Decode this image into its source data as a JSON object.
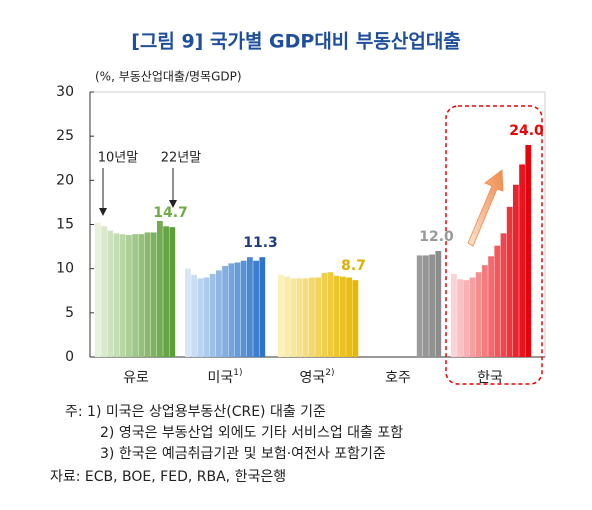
{
  "chart_data": {
    "type": "grouped_bar",
    "title": "[그림 9] 국가별 GDP대비 부동산업대출",
    "ylabel": "(%, 부동산업대출/명목GDP)",
    "ylim": [
      0,
      30
    ],
    "yticks": [
      0,
      5,
      10,
      15,
      20,
      25,
      30
    ],
    "groups": [
      {
        "name": "유로",
        "note": null,
        "colors": [
          "#e6f0dc",
          "#5a9e36"
        ],
        "label_color": "#70ad47",
        "values": [
          15.2,
          14.8,
          14.3,
          14.0,
          13.9,
          13.8,
          13.9,
          13.9,
          14.1,
          14.1,
          15.4,
          14.8,
          14.7
        ],
        "value_label": "14.7"
      },
      {
        "name": "미국",
        "note": "1)",
        "colors": [
          "#d6e6f7",
          "#2e75c8"
        ],
        "label_color": "#1f3c88",
        "values": [
          10.0,
          9.3,
          8.9,
          9.0,
          9.4,
          9.8,
          10.3,
          10.6,
          10.7,
          10.9,
          11.3,
          10.9,
          11.3
        ],
        "value_label": "11.3"
      },
      {
        "name": "영국",
        "note": "2)",
        "colors": [
          "#fbf0b8",
          "#e8b800"
        ],
        "label_color": "#e0b000",
        "values": [
          9.3,
          9.1,
          8.9,
          8.9,
          8.9,
          9.0,
          9.0,
          9.5,
          9.6,
          9.2,
          9.1,
          9.0,
          8.7
        ],
        "value_label": "8.7"
      },
      {
        "name": "호주",
        "note": null,
        "colors": [
          "#c8c8c8",
          "#8c8c8c"
        ],
        "label_color": "#999999",
        "values": [
          null,
          null,
          null,
          null,
          null,
          null,
          null,
          null,
          null,
          11.5,
          11.5,
          11.6,
          12.0
        ],
        "value_label": "12.0"
      },
      {
        "name": "한국",
        "note": null,
        "colors": [
          "#fbd3d3",
          "#e8000b"
        ],
        "label_color": "#ee0000",
        "values": [
          9.4,
          8.8,
          8.7,
          9.0,
          9.6,
          10.4,
          11.4,
          12.6,
          14.0,
          17.0,
          19.5,
          21.8,
          24.0
        ],
        "value_label": "24.0"
      }
    ],
    "annotations": [
      "10년말",
      "22년말"
    ]
  },
  "notes": [
    "주: 1) 미국은 상업용부동산(CRE) 대출 기준",
    "2) 영국은 부동산업 외에도 기타 서비스업 대출 포함",
    "3) 한국은 예금취급기관 및 보험·여전사 포함기준"
  ],
  "source": "자료: ECB, BOE, FED, RBA, 한국은행"
}
